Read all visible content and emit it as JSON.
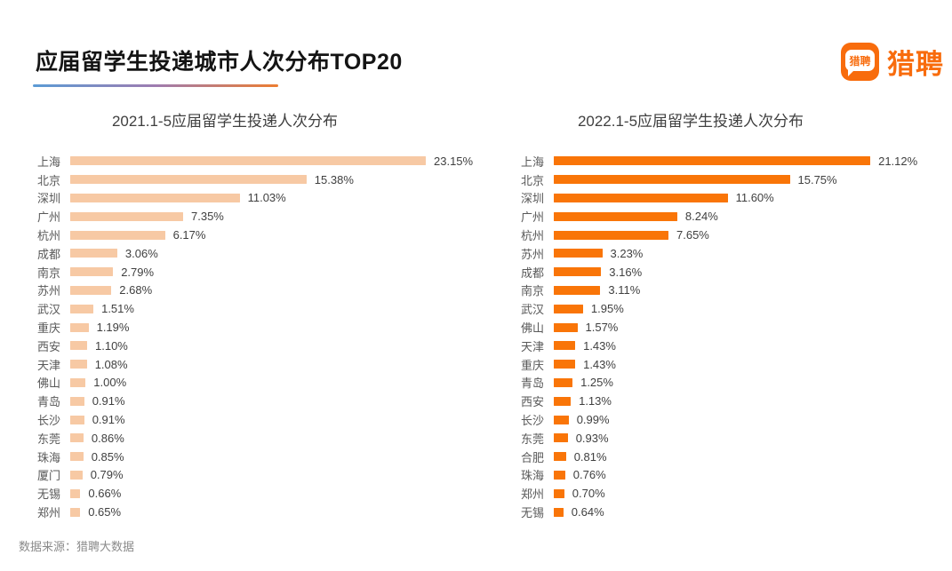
{
  "header": {
    "title": "应届留学生投递城市人次分布TOP20"
  },
  "logo": {
    "icon_text": "猎聘",
    "wordmark": "猎聘"
  },
  "footer": {
    "source": "数据来源：猎聘大数据"
  },
  "colors": {
    "brand_orange": "#f86c0d",
    "bar_2021": "#f7c9a4",
    "bar_2022": "#f97508",
    "underline_gradient_start": "#5b9bd5",
    "underline_gradient_end": "#ed7d31"
  },
  "chart_data": [
    {
      "type": "bar",
      "orientation": "horizontal",
      "title": "2021.1-5应届留学生投递人次分布",
      "unit": "%",
      "bar_color": "#f7c9a4",
      "xlim": [
        0,
        26
      ],
      "grid": false,
      "legend": "none",
      "categories": [
        "上海",
        "北京",
        "深圳",
        "广州",
        "杭州",
        "成都",
        "南京",
        "苏州",
        "武汉",
        "重庆",
        "西安",
        "天津",
        "佛山",
        "青岛",
        "长沙",
        "东莞",
        "珠海",
        "厦门",
        "无锡",
        "郑州"
      ],
      "values": [
        23.15,
        15.38,
        11.03,
        7.35,
        6.17,
        3.06,
        2.79,
        2.68,
        1.51,
        1.19,
        1.1,
        1.08,
        1.0,
        0.91,
        0.91,
        0.86,
        0.85,
        0.79,
        0.66,
        0.65
      ],
      "labels": [
        "23.15%",
        "15.38%",
        "11.03%",
        "7.35%",
        "6.17%",
        "3.06%",
        "2.79%",
        "2.68%",
        "1.51%",
        "1.19%",
        "1.10%",
        "1.08%",
        "1.00%",
        "0.91%",
        "0.91%",
        "0.86%",
        "0.85%",
        "0.79%",
        "0.66%",
        "0.65%"
      ]
    },
    {
      "type": "bar",
      "orientation": "horizontal",
      "title": "2022.1-5应届留学生投递人次分布",
      "unit": "%",
      "bar_color": "#f97508",
      "xlim": [
        0,
        24
      ],
      "grid": false,
      "legend": "none",
      "categories": [
        "上海",
        "北京",
        "深圳",
        "广州",
        "杭州",
        "苏州",
        "成都",
        "南京",
        "武汉",
        "佛山",
        "天津",
        "重庆",
        "青岛",
        "西安",
        "长沙",
        "东莞",
        "合肥",
        "珠海",
        "郑州",
        "无锡"
      ],
      "values": [
        21.12,
        15.75,
        11.6,
        8.24,
        7.65,
        3.23,
        3.16,
        3.11,
        1.95,
        1.57,
        1.43,
        1.43,
        1.25,
        1.13,
        0.99,
        0.93,
        0.81,
        0.76,
        0.7,
        0.64
      ],
      "labels": [
        "21.12%",
        "15.75%",
        "11.60%",
        "8.24%",
        "7.65%",
        "3.23%",
        "3.16%",
        "3.11%",
        "1.95%",
        "1.57%",
        "1.43%",
        "1.43%",
        "1.25%",
        "1.13%",
        "0.99%",
        "0.93%",
        "0.81%",
        "0.76%",
        "0.70%",
        "0.64%"
      ]
    }
  ]
}
